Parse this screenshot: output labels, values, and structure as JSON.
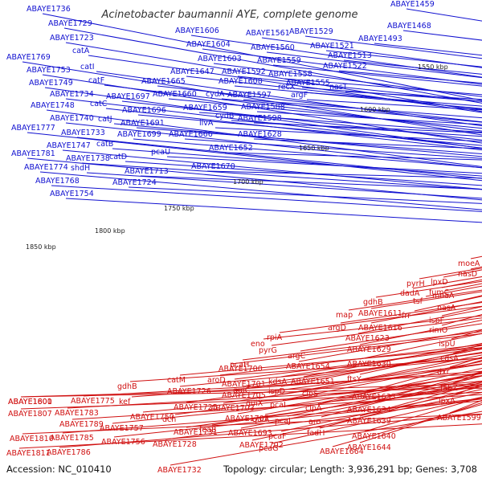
{
  "title": "Acinetobacter baumannii AYE, complete genome",
  "footer": {
    "accession": "Accession: NC_010410",
    "details": "Topology: circular; Length: 3,936,291 bp; Genes: 3,708"
  },
  "colors": {
    "forward": "#1010d0",
    "reverse": "#d01010",
    "backbone": "#6a6a6a",
    "tick_text": "#222222"
  },
  "ticks": [
    "1850 kbp",
    "1800 kbp",
    "1750 kbp",
    "1700 kbp",
    "1650 kbp",
    "1600 kbp",
    "1550 kbp"
  ],
  "forward_labels": [
    "ABAYE1736",
    "ABAYE1729",
    "ABAYE1723",
    "ABAYE1769",
    "catA",
    "ABAYE1753",
    "catI",
    "ABAYE1749",
    "catF",
    "ABAYE1734",
    "ABAYE1748",
    "catC",
    "ABAYE1740",
    "catJ",
    "ABAYE1777",
    "ABAYE1733",
    "ABAYE1747",
    "catB",
    "ABAYE1781",
    "ABAYE1738",
    "catD",
    "ABAYE1774",
    "shdH",
    "ABAYE1713",
    "ABAYE1768",
    "ABAYE1724",
    "ABAYE1754",
    "ABAYE1697",
    "ABAYE1696",
    "ABAYE1691",
    "ABAYE1699",
    "pcaU",
    "ABAYE1665",
    "ABAYE1660",
    "ABAYE1659",
    "ABAYE1666",
    "ABAYE1670",
    "ABAYE1647",
    "ABAYE1652",
    "ilvA",
    "cydA",
    "cydB",
    "ABAYE1608",
    "ABAYE1606",
    "ABAYE1604",
    "ABAYE1603",
    "ABAYE1592",
    "ABAYE1597",
    "ABAYE1588",
    "ABAYE1598",
    "ABAYE1628",
    "ABAYE1561",
    "ABAYE1560",
    "ABAYE1559",
    "ABAYE1558",
    "recX",
    "ABAYE1555",
    "argF",
    "ABAYE1529",
    "ABAYE1521",
    "ABAYE1513",
    "ABAYE1522",
    "nasT",
    "ABAYE1493",
    "ABAYE1468",
    "ABAYE1459"
  ],
  "reverse_labels": [
    "ABAYE1800",
    "ABAYE1775",
    "gdhB",
    "kef",
    "ABAYE1807",
    "ABAYE1783",
    "ABAYE1789",
    "ABAYE1810",
    "ABAYE1785",
    "ABAYE1786",
    "ABAYE1811",
    "ABAYE1750",
    "ABAYE1757",
    "ABAYE1756",
    "catM",
    "ABAYE1726",
    "ABAYE1725",
    "dch",
    "ABAYE1731",
    "ABAYE1728",
    "ABAYE1732",
    "ABAYE1700",
    "pcaH",
    "ABAYE1701",
    "ABAYE1705",
    "ABAYE1703",
    "ABAYE1707",
    "feaB",
    "ABAYE1693",
    "ABAYE1702",
    "aroD",
    "quiC",
    "quiX",
    "quiA",
    "pcaG",
    "eno",
    "rpiA",
    "pyrG",
    "argC",
    "kdsA",
    "ispD",
    "pcaI",
    "pcaJ",
    "pcaF",
    "ABAYE1654",
    "ABAYE1651",
    "clpS",
    "clpA",
    "aro",
    "fadH",
    "ABAYE1664",
    "argD",
    "ABAYE1623",
    "ABAYE1629",
    "ABAYE1630",
    "ftsY",
    "ABAYE1633",
    "ABAYE1634",
    "ABAYE1639",
    "ABAYE1640",
    "ABAYE1644",
    "map",
    "gdhB",
    "ABAYE1611",
    "ABAYE1616",
    "pyrH",
    "dadA",
    "tsf",
    "frr",
    "lpxD",
    "fumC",
    "moaA",
    "moeA",
    "nasD",
    "nasA",
    "ispF",
    "rimO",
    "ispU",
    "cdsA",
    "dxr",
    "fabZ",
    "lpxA",
    "ABAYE1599",
    "ABAYE1601"
  ]
}
